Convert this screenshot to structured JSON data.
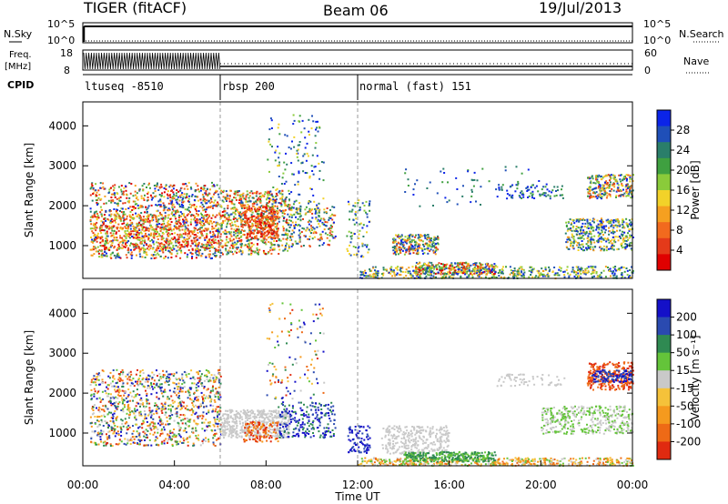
{
  "header": {
    "station": "TIGER (fitACF)",
    "beam": "Beam 06",
    "date": "19/Jul/2013"
  },
  "side_labels": {
    "nsky": "N.Sky",
    "nsearch": "N.Search",
    "freq_line1": "Freq.",
    "freq_line2": "[MHz]",
    "nave": "Nave",
    "cpid": "CPID"
  },
  "panels_top": {
    "nsky_ticks": [
      "10^5",
      "10^0"
    ],
    "nsearch_ticks": [
      "10^5",
      "10^0"
    ],
    "freq_ticks": [
      "18",
      "8"
    ],
    "nave_ticks": [
      "60",
      "0"
    ]
  },
  "cpid_segments": [
    {
      "label": "ltuseq -8510",
      "start_hour": 0,
      "end_hour": 6
    },
    {
      "label": "rbsp 200",
      "start_hour": 6,
      "end_hour": 12
    },
    {
      "label": "normal (fast) 151",
      "start_hour": 12,
      "end_hour": 24
    }
  ],
  "chart_data": [
    {
      "type": "heatmap",
      "name": "power",
      "ylabel": "Slant Range [km]",
      "xlabel": "",
      "xlim": [
        0,
        24
      ],
      "ylim": [
        180,
        4600
      ],
      "yticks": [
        "1000",
        "2000",
        "3000",
        "4000"
      ],
      "colorbar": {
        "label": "Power [dB]",
        "ticks": [
          "28",
          "24",
          "20",
          "16",
          "12",
          "8",
          "4"
        ],
        "colors": [
          "#0b24e8",
          "#1f4fb8",
          "#2a7e6a",
          "#3fa040",
          "#8acb3a",
          "#f2d229",
          "#f5a020",
          "#f26a1e",
          "#e43a1a",
          "#e00000"
        ]
      }
    },
    {
      "type": "heatmap",
      "name": "velocity",
      "ylabel": "Slant Range [km]",
      "xlabel": "Time UT",
      "xlim": [
        0,
        24
      ],
      "ylim": [
        180,
        4600
      ],
      "yticks": [
        "1000",
        "2000",
        "3000",
        "4000"
      ],
      "xticks": [
        "00:00",
        "04:00",
        "08:00",
        "12:00",
        "16:00",
        "20:00",
        "00:00"
      ],
      "colorbar": {
        "label": "Velocity [m s⁻¹]",
        "ticks": [
          "200",
          "100",
          "50",
          "15",
          "-15",
          "-50",
          "-100",
          "-200"
        ],
        "colors": [
          "#1410c8",
          "#2a4ab0",
          "#2f8a52",
          "#64c43a",
          "#c9c9c9",
          "#f5c23a",
          "#f59a1e",
          "#ee6a16",
          "#e02a10"
        ]
      }
    }
  ]
}
